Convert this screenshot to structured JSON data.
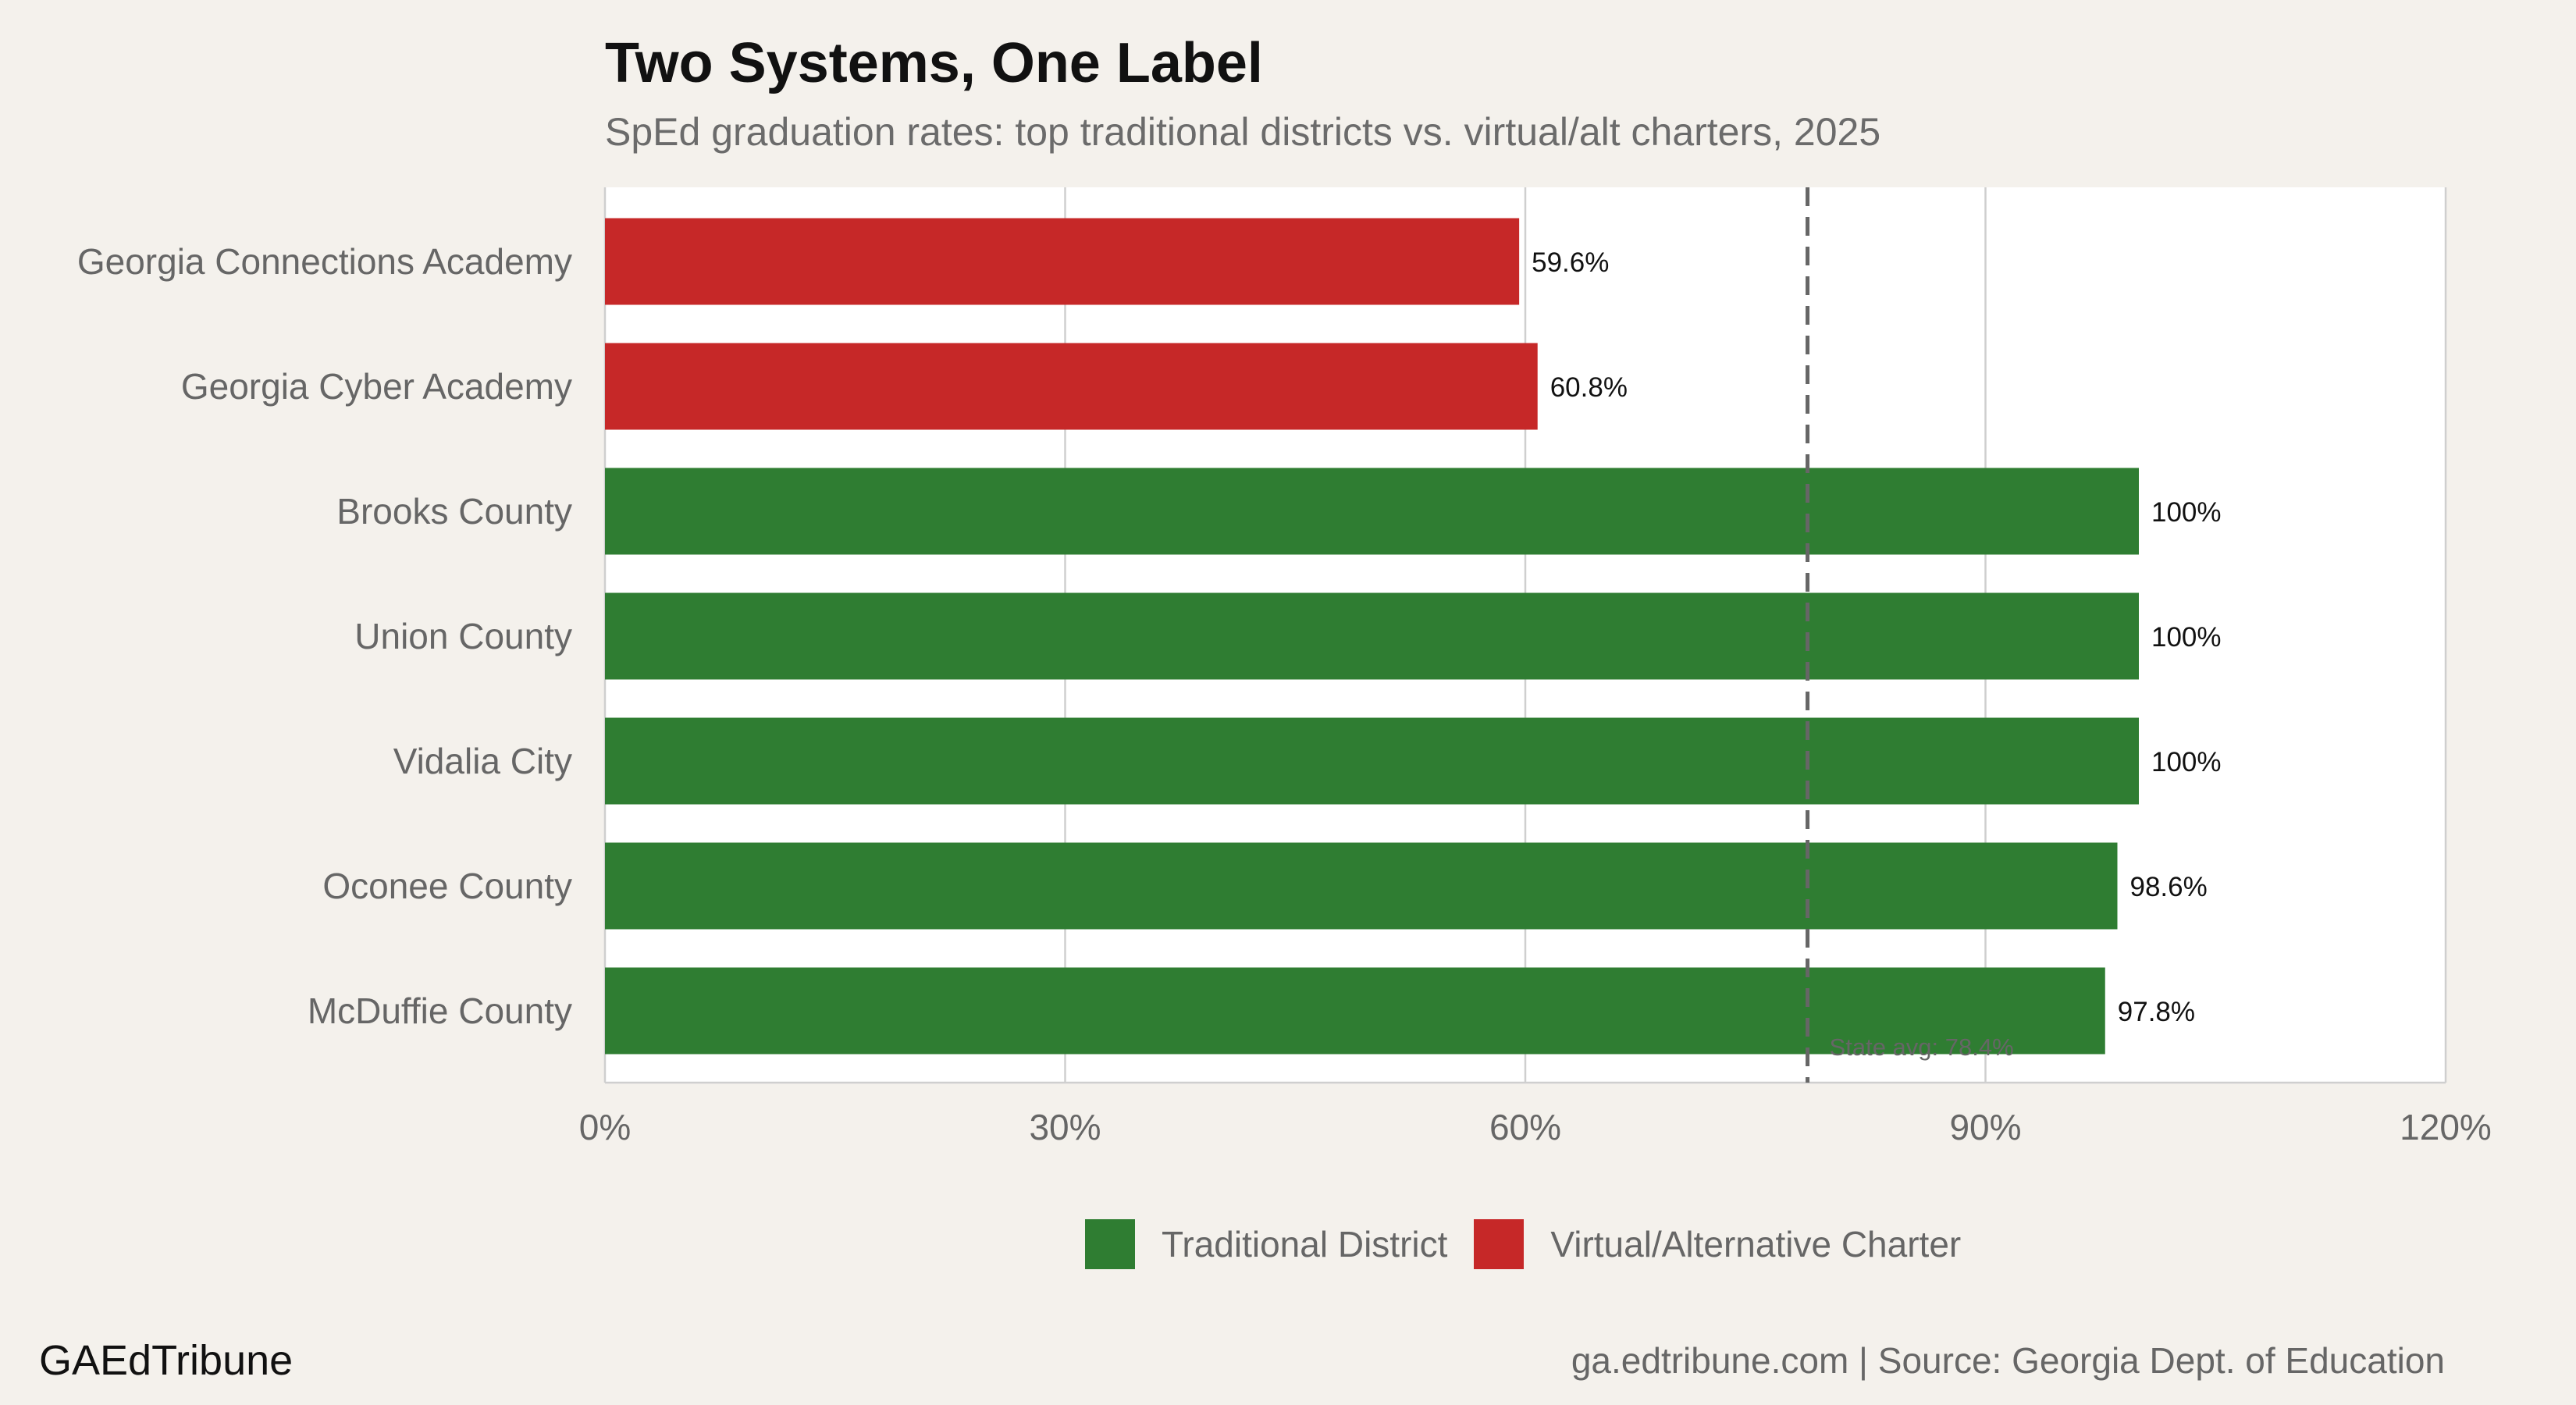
{
  "title": "Two Systems, One Label",
  "subtitle": "SpEd graduation rates: top traditional districts vs. virtual/alt charters, 2025",
  "brand": "GAEdTribune",
  "source": "ga.edtribune.com | Source: Georgia Dept. of Education",
  "colors": {
    "traditional": "#2f7d32",
    "virtual": "#c62828",
    "reference_line": "#666666"
  },
  "legend": [
    {
      "label": "Traditional District",
      "color": "#2f7d32"
    },
    {
      "label": "Virtual/Alternative Charter",
      "color": "#c62828"
    }
  ],
  "chart_data": {
    "type": "bar",
    "orientation": "horizontal",
    "title": "Two Systems, One Label",
    "subtitle": "SpEd graduation rates: top traditional districts vs. virtual/alt charters, 2025",
    "categories": [
      "Georgia Connections Academy",
      "Georgia Cyber Academy",
      "Brooks County",
      "Union County",
      "Vidalia City",
      "Oconee County",
      "McDuffie County"
    ],
    "values": [
      59.6,
      60.8,
      100,
      100,
      100,
      98.6,
      97.8
    ],
    "value_labels": [
      "59.6%",
      "60.8%",
      "100%",
      "100%",
      "100%",
      "98.6%",
      "97.8%"
    ],
    "groups": [
      "Virtual/Alternative Charter",
      "Virtual/Alternative Charter",
      "Traditional District",
      "Traditional District",
      "Traditional District",
      "Traditional District",
      "Traditional District"
    ],
    "xlim": [
      0,
      120
    ],
    "xticks": [
      0,
      30,
      60,
      90,
      120
    ],
    "xtick_labels": [
      "0%",
      "30%",
      "60%",
      "90%",
      "120%"
    ],
    "xlabel": "",
    "ylabel": "",
    "grid": "vertical",
    "legend_position": "bottom",
    "reference_line": {
      "value": 78.4,
      "label": "State avg: 78.4%",
      "style": "dashed"
    }
  }
}
